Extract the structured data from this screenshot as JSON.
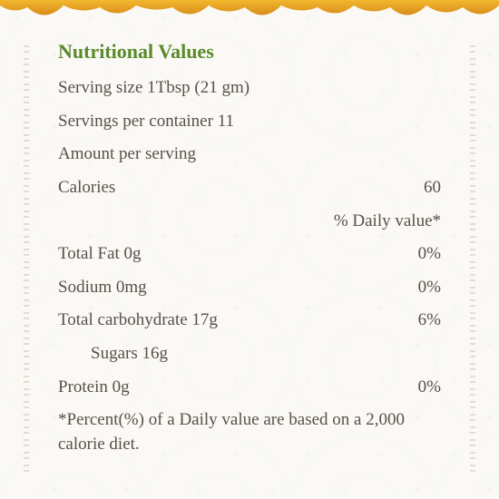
{
  "colors": {
    "title": "#5a8a2a",
    "text": "#5a5048",
    "background": "#faf9f5",
    "honey_dark": "#d98c1a",
    "honey_light": "#f2b82e",
    "ornament": "rgba(180,168,140,0.35)"
  },
  "typography": {
    "title_fontsize": 22,
    "body_fontsize": 19,
    "font_family": "serif"
  },
  "title": "Nutritional Values",
  "serving_size": "Serving size 1Tbsp (21 gm)",
  "servings_per_container": "Servings per container 11",
  "amount_per_serving": "Amount per serving",
  "calories_label": "Calories",
  "calories_value": "60",
  "daily_value_header": "% Daily value*",
  "nutrients": [
    {
      "label": "Total Fat 0g",
      "dv": "0%",
      "indent": false
    },
    {
      "label": "Sodium 0mg",
      "dv": "0%",
      "indent": false
    },
    {
      "label": "Total carbohydrate 17g",
      "dv": "6%",
      "indent": false
    },
    {
      "label": "Sugars 16g",
      "dv": "",
      "indent": true
    },
    {
      "label": "Protein 0g",
      "dv": "0%",
      "indent": false
    }
  ],
  "footnote": "*Percent(%) of a Daily value are based on a 2,000 calorie diet."
}
